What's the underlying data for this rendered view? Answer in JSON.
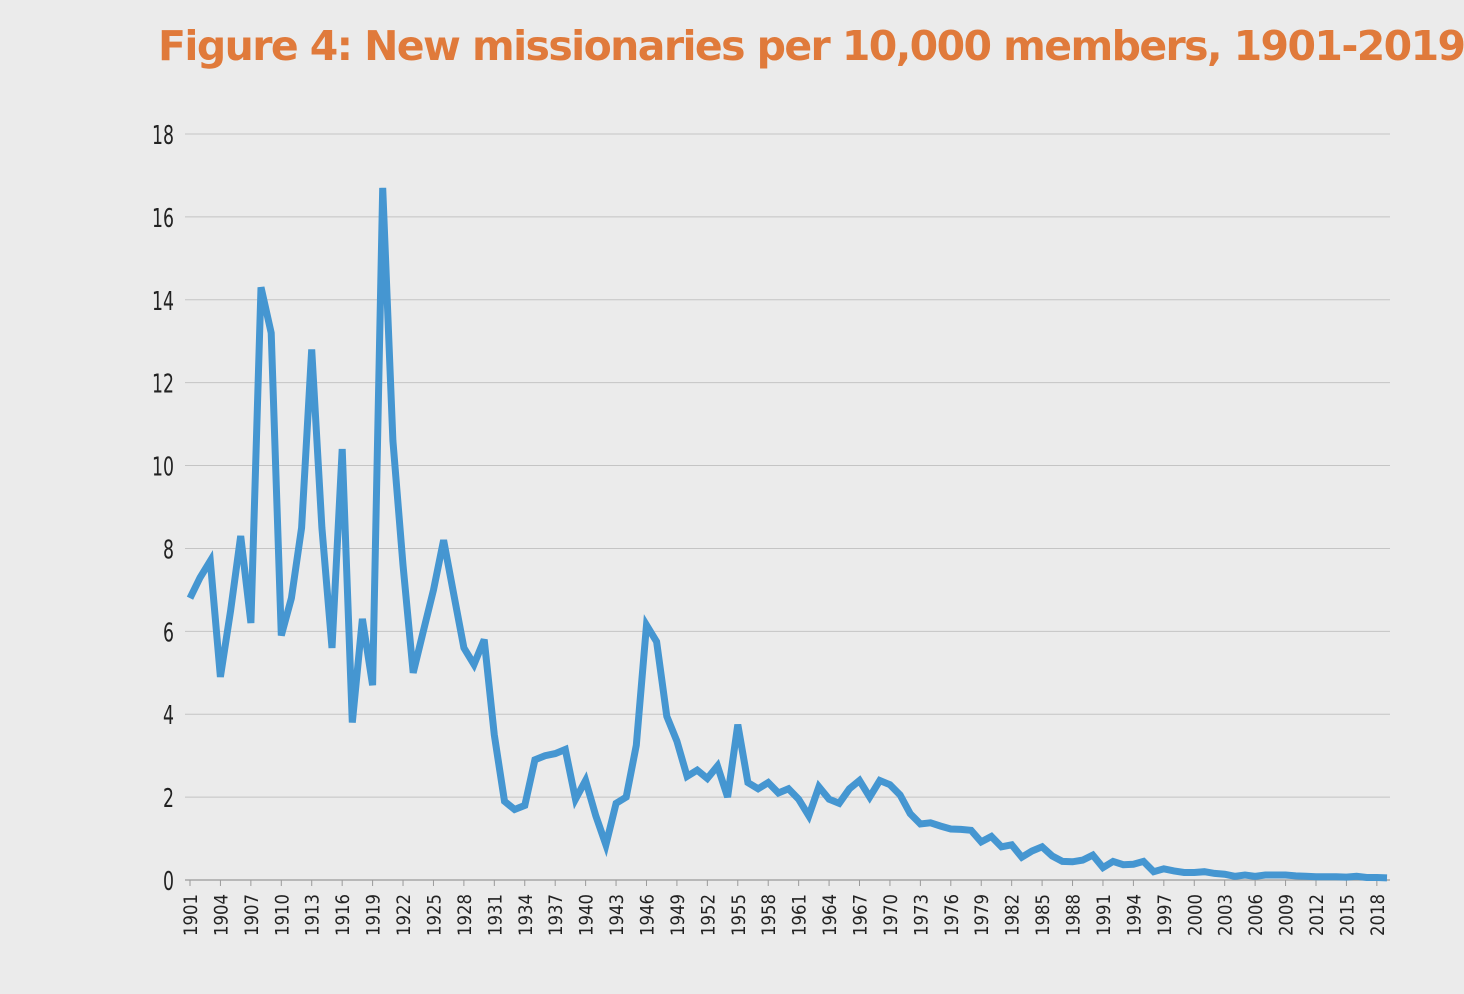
{
  "chart_data": {
    "type": "line",
    "title": "Figure 4: New missionaries per 10,000 members, 1901-2019",
    "xlabel": "",
    "ylabel": "",
    "ylim": [
      0,
      18
    ],
    "y_ticks": [
      "0",
      "2",
      "4",
      "6",
      "8",
      "10",
      "12",
      "14",
      "16",
      "18"
    ],
    "grid": true,
    "line_color": "#4596d1",
    "title_color": "#e07a3b",
    "background": "#ebebeb",
    "x": [
      1901,
      1902,
      1903,
      1904,
      1905,
      1906,
      1907,
      1908,
      1909,
      1910,
      1911,
      1912,
      1913,
      1914,
      1915,
      1916,
      1917,
      1918,
      1919,
      1920,
      1921,
      1922,
      1923,
      1924,
      1925,
      1926,
      1927,
      1928,
      1929,
      1930,
      1931,
      1932,
      1933,
      1934,
      1935,
      1936,
      1937,
      1938,
      1939,
      1940,
      1941,
      1942,
      1943,
      1944,
      1945,
      1946,
      1947,
      1948,
      1949,
      1950,
      1951,
      1952,
      1953,
      1954,
      1955,
      1956,
      1957,
      1958,
      1959,
      1960,
      1961,
      1962,
      1963,
      1964,
      1965,
      1966,
      1967,
      1968,
      1969,
      1970,
      1971,
      1972,
      1973,
      1974,
      1975,
      1976,
      1977,
      1978,
      1979,
      1980,
      1981,
      1982,
      1983,
      1984,
      1985,
      1986,
      1987,
      1988,
      1989,
      1990,
      1991,
      1992,
      1993,
      1994,
      1995,
      1996,
      1997,
      1998,
      1999,
      2000,
      2001,
      2002,
      2003,
      2004,
      2005,
      2006,
      2007,
      2008,
      2009,
      2010,
      2011,
      2012,
      2013,
      2014,
      2015,
      2016,
      2017,
      2018,
      2019
    ],
    "x_tick_labels": [
      "1901",
      "1904",
      "1907",
      "1910",
      "1913",
      "1916",
      "1919",
      "1922",
      "1925",
      "1928",
      "1931",
      "1934",
      "1937",
      "1940",
      "1943",
      "1946",
      "1949",
      "1952",
      "1955",
      "1958",
      "1961",
      "1964",
      "1967",
      "1970",
      "1973",
      "1976",
      "1979",
      "1982",
      "1985",
      "1988",
      "1991",
      "1994",
      "1997",
      "2000",
      "2003",
      "2006",
      "2009",
      "2012",
      "2015",
      "2018"
    ],
    "series": [
      {
        "values": [
          6.8,
          7.3,
          7.7,
          4.9,
          6.5,
          8.3,
          6.2,
          14.3,
          13.2,
          5.9,
          6.8,
          8.5,
          12.8,
          8.5,
          5.6,
          10.4,
          3.8,
          6.3,
          4.7,
          16.7,
          10.6,
          7.6,
          5.0,
          6.0,
          7.0,
          8.2,
          6.9,
          5.6,
          5.2,
          5.8,
          3.5,
          1.9,
          1.7,
          1.8,
          2.9,
          3.0,
          3.05,
          3.15,
          1.95,
          2.4,
          1.55,
          0.85,
          1.85,
          2.0,
          3.25,
          6.15,
          5.75,
          3.95,
          3.35,
          2.5,
          2.65,
          2.45,
          2.75,
          2.0,
          3.75,
          2.35,
          2.2,
          2.35,
          2.1,
          2.2,
          1.95,
          1.55,
          2.25,
          1.95,
          1.85,
          2.2,
          2.4,
          2.0,
          2.4,
          2.3,
          2.05,
          1.6,
          1.35,
          1.38,
          1.3,
          1.23,
          1.22,
          1.2,
          0.92,
          1.05,
          0.8,
          0.85,
          0.55,
          0.7,
          0.8,
          0.58,
          0.45,
          0.44,
          0.48,
          0.6,
          0.3,
          0.45,
          0.37,
          0.38,
          0.45,
          0.2,
          0.27,
          0.22,
          0.18,
          0.18,
          0.2,
          0.16,
          0.14,
          0.09,
          0.12,
          0.09,
          0.12,
          0.12,
          0.12,
          0.1,
          0.09,
          0.08,
          0.08,
          0.08,
          0.07,
          0.09,
          0.06,
          0.06,
          0.05
        ]
      }
    ]
  }
}
